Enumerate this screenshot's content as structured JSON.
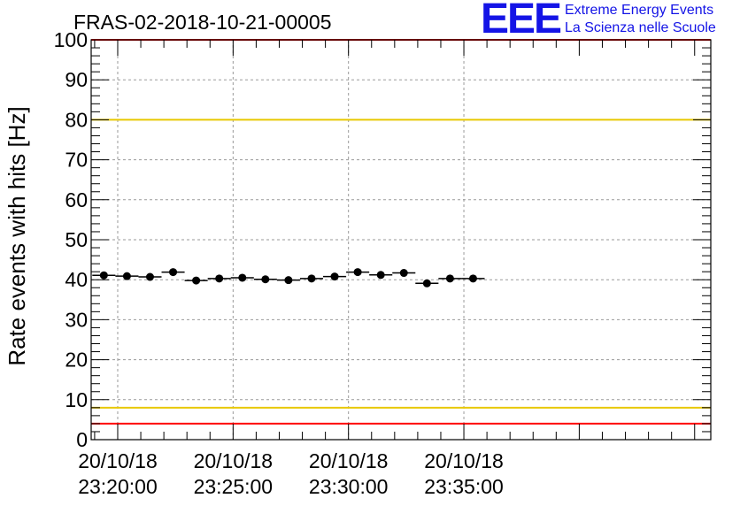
{
  "chart_data": {
    "type": "scatter",
    "title": "FRAS-02-2018-10-21-00005",
    "ylabel": "Rate events with hits [Hz]",
    "xlabel": "",
    "ylim": [
      0,
      100
    ],
    "yticks": [
      0,
      10,
      20,
      30,
      40,
      50,
      60,
      70,
      80,
      90,
      100
    ],
    "xlim_seconds": [
      -69,
      1542
    ],
    "xtick_labels": [
      {
        "t": 0,
        "date": "20/10/18",
        "time": "23:20:00"
      },
      {
        "t": 300,
        "date": "20/10/18",
        "time": "23:25:00"
      },
      {
        "t": 600,
        "date": "20/10/18",
        "time": "23:30:00"
      },
      {
        "t": 900,
        "date": "20/10/18",
        "time": "23:35:00"
      }
    ],
    "grid": true,
    "series": [
      {
        "name": "rate",
        "x_seconds": [
          -36,
          24,
          84,
          144,
          204,
          264,
          324,
          384,
          444,
          504,
          564,
          624,
          684,
          744,
          804,
          864,
          924
        ],
        "x_halfwidth_seconds": 30,
        "values": [
          41.1,
          40.9,
          40.7,
          41.9,
          39.8,
          40.3,
          40.5,
          40.1,
          39.9,
          40.3,
          40.8,
          41.9,
          41.2,
          41.7,
          39.1,
          40.3,
          40.3
        ]
      }
    ],
    "reference_lines": [
      {
        "name": "upper-red-limit",
        "y": 100,
        "color": "#ff0000"
      },
      {
        "name": "upper-yellow-limit",
        "y": 80,
        "color": "#e8c800"
      },
      {
        "name": "lower-yellow-limit",
        "y": 8,
        "color": "#e8c800"
      },
      {
        "name": "lower-red-limit",
        "y": 4,
        "color": "#ff0000"
      }
    ]
  },
  "logo": {
    "letters": "EEE",
    "line1": "Extreme Energy Events",
    "line2": "La Scienza nelle Scuole",
    "color": "#1414e6"
  }
}
